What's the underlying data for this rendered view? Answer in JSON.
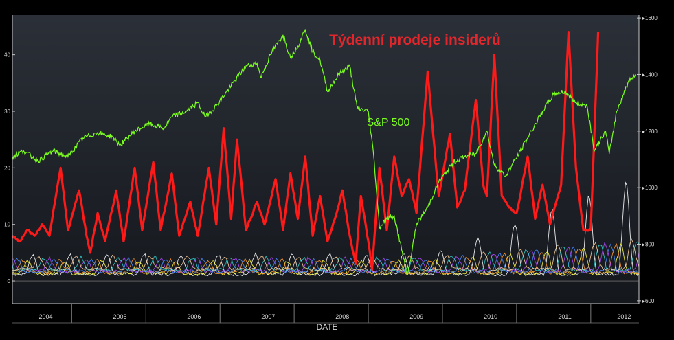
{
  "colors": {
    "background_top": "#2b3038",
    "background_bottom": "#14171c",
    "frame": "#c8c8c8",
    "insider_sales": "#ff1a1a",
    "sp500": "#7cff1f",
    "title": "#e3262b",
    "small_series": [
      "#ffffff",
      "#ffff40",
      "#ff9a30",
      "#4a8cff",
      "#b04aff",
      "#30d0d0",
      "#ffd2a0"
    ]
  },
  "chart_data": {
    "type": "line",
    "title": "Týdenní prodeje insiderů",
    "xlabel": "DATE",
    "left_axis": {
      "range": [
        -4,
        47
      ],
      "ticks": [
        "0",
        "10",
        "20",
        "30",
        "40"
      ],
      "values": [
        0,
        10,
        20,
        30,
        40
      ]
    },
    "right_axis": {
      "range": [
        590,
        1610
      ],
      "ticks": [
        "600",
        "800",
        "1000",
        "1200",
        "1400",
        "1600"
      ],
      "values": [
        600,
        800,
        1000,
        1200,
        1400,
        1600
      ]
    },
    "x_axis": {
      "range": [
        2003.85,
        2012.3
      ],
      "year_labels": [
        "2004",
        "2005",
        "2006",
        "2007",
        "2008",
        "2009",
        "2010",
        "2011",
        "2012"
      ],
      "year_positions": [
        2004.3,
        2005.3,
        2006.3,
        2007.3,
        2008.3,
        2009.3,
        2010.3,
        2011.3,
        2012.1
      ],
      "separators": [
        2004.65,
        2005.65,
        2006.65,
        2007.65,
        2008.65,
        2009.65,
        2010.65,
        2011.65
      ]
    },
    "grid": false,
    "series": [
      {
        "name": "S&P 500",
        "label": "S&P 500",
        "axis": "right",
        "points": [
          [
            2003.85,
            1110
          ],
          [
            2004.0,
            1130
          ],
          [
            2004.2,
            1095
          ],
          [
            2004.4,
            1130
          ],
          [
            2004.6,
            1110
          ],
          [
            2004.8,
            1175
          ],
          [
            2005.0,
            1195
          ],
          [
            2005.2,
            1180
          ],
          [
            2005.3,
            1150
          ],
          [
            2005.5,
            1200
          ],
          [
            2005.7,
            1225
          ],
          [
            2005.9,
            1210
          ],
          [
            2006.0,
            1250
          ],
          [
            2006.2,
            1270
          ],
          [
            2006.35,
            1300
          ],
          [
            2006.45,
            1250
          ],
          [
            2006.6,
            1290
          ],
          [
            2006.8,
            1360
          ],
          [
            2007.0,
            1430
          ],
          [
            2007.15,
            1440
          ],
          [
            2007.2,
            1390
          ],
          [
            2007.35,
            1480
          ],
          [
            2007.5,
            1540
          ],
          [
            2007.6,
            1460
          ],
          [
            2007.7,
            1500
          ],
          [
            2007.8,
            1560
          ],
          [
            2007.9,
            1480
          ],
          [
            2008.0,
            1450
          ],
          [
            2008.1,
            1340
          ],
          [
            2008.25,
            1400
          ],
          [
            2008.4,
            1430
          ],
          [
            2008.5,
            1280
          ],
          [
            2008.65,
            1270
          ],
          [
            2008.72,
            1120
          ],
          [
            2008.8,
            860
          ],
          [
            2008.9,
            890
          ],
          [
            2009.0,
            900
          ],
          [
            2009.1,
            780
          ],
          [
            2009.18,
            690
          ],
          [
            2009.3,
            870
          ],
          [
            2009.45,
            930
          ],
          [
            2009.6,
            1020
          ],
          [
            2009.8,
            1090
          ],
          [
            2009.95,
            1110
          ],
          [
            2010.1,
            1120
          ],
          [
            2010.25,
            1200
          ],
          [
            2010.35,
            1080
          ],
          [
            2010.5,
            1040
          ],
          [
            2010.7,
            1130
          ],
          [
            2010.85,
            1200
          ],
          [
            2011.0,
            1270
          ],
          [
            2011.15,
            1330
          ],
          [
            2011.3,
            1340
          ],
          [
            2011.45,
            1300
          ],
          [
            2011.6,
            1290
          ],
          [
            2011.7,
            1130
          ],
          [
            2011.85,
            1200
          ],
          [
            2011.9,
            1120
          ],
          [
            2012.0,
            1270
          ],
          [
            2012.15,
            1370
          ],
          [
            2012.25,
            1400
          ]
        ]
      },
      {
        "name": "Týdenní prodeje insiderů",
        "axis": "left",
        "points": [
          [
            2003.85,
            8
          ],
          [
            2003.95,
            7
          ],
          [
            2004.05,
            9
          ],
          [
            2004.15,
            8
          ],
          [
            2004.25,
            10
          ],
          [
            2004.35,
            8
          ],
          [
            2004.5,
            20
          ],
          [
            2004.6,
            9
          ],
          [
            2004.75,
            16
          ],
          [
            2004.85,
            8
          ],
          [
            2004.9,
            5
          ],
          [
            2005.0,
            12
          ],
          [
            2005.1,
            7
          ],
          [
            2005.25,
            16
          ],
          [
            2005.35,
            7
          ],
          [
            2005.5,
            20
          ],
          [
            2005.6,
            9
          ],
          [
            2005.75,
            21
          ],
          [
            2005.85,
            9
          ],
          [
            2006.0,
            19
          ],
          [
            2006.1,
            8
          ],
          [
            2006.25,
            14
          ],
          [
            2006.35,
            8
          ],
          [
            2006.5,
            20
          ],
          [
            2006.6,
            10
          ],
          [
            2006.7,
            27
          ],
          [
            2006.8,
            11
          ],
          [
            2006.88,
            25
          ],
          [
            2007.0,
            9
          ],
          [
            2007.15,
            14
          ],
          [
            2007.25,
            10
          ],
          [
            2007.4,
            18
          ],
          [
            2007.5,
            9
          ],
          [
            2007.6,
            19
          ],
          [
            2007.7,
            11
          ],
          [
            2007.8,
            22
          ],
          [
            2007.9,
            8
          ],
          [
            2008.0,
            15
          ],
          [
            2008.1,
            7
          ],
          [
            2008.2,
            11
          ],
          [
            2008.3,
            16
          ],
          [
            2008.4,
            8
          ],
          [
            2008.48,
            3
          ],
          [
            2008.55,
            15
          ],
          [
            2008.65,
            7
          ],
          [
            2008.7,
            2
          ],
          [
            2008.8,
            20
          ],
          [
            2008.9,
            9
          ],
          [
            2009.0,
            22
          ],
          [
            2009.1,
            15
          ],
          [
            2009.2,
            18
          ],
          [
            2009.3,
            12
          ],
          [
            2009.45,
            37
          ],
          [
            2009.6,
            15
          ],
          [
            2009.75,
            26
          ],
          [
            2009.85,
            13
          ],
          [
            2009.95,
            16
          ],
          [
            2010.1,
            32
          ],
          [
            2010.2,
            17
          ],
          [
            2010.25,
            15
          ],
          [
            2010.35,
            40
          ],
          [
            2010.45,
            15
          ],
          [
            2010.55,
            13
          ],
          [
            2010.65,
            12
          ],
          [
            2010.8,
            22
          ],
          [
            2010.9,
            11
          ],
          [
            2011.0,
            17
          ],
          [
            2011.1,
            10
          ],
          [
            2011.25,
            17
          ],
          [
            2011.35,
            44
          ],
          [
            2011.45,
            20
          ],
          [
            2011.55,
            9
          ],
          [
            2011.65,
            9
          ],
          [
            2011.75,
            44
          ]
        ]
      }
    ],
    "annotations": [
      {
        "text": "S&P 500",
        "series": "S&P 500"
      }
    ]
  }
}
